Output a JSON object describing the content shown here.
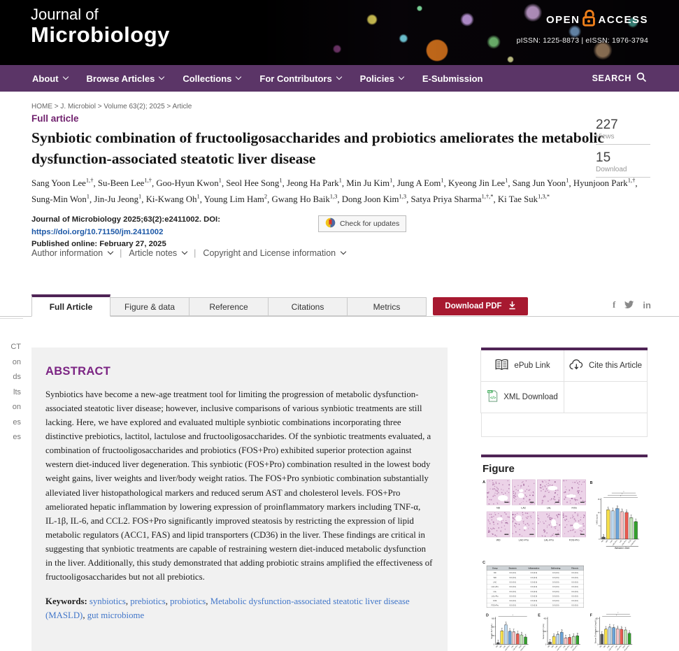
{
  "colors": {
    "brand_purple": "#5b3567",
    "accent_purple": "#4f2456",
    "article_type_purple": "#70216e",
    "abstract_heading_purple": "#7b2483",
    "pdf_red": "#a71930",
    "link_blue": "#1b57a6",
    "keyword_blue": "#4176c9",
    "open_access_orange": "#ef7f1a"
  },
  "header": {
    "journal_title_line1": "Journal of",
    "journal_title_line2": "Microbiology",
    "open_access_left": "OPEN",
    "open_access_right": "ACCESS",
    "issn_text": "pISSN: 1225-8873  |  eISSN: 1976-3794"
  },
  "nav": {
    "items": [
      {
        "label": "About",
        "dropdown": true
      },
      {
        "label": "Browse Articles",
        "dropdown": true
      },
      {
        "label": "Collections",
        "dropdown": true
      },
      {
        "label": "For Contributors",
        "dropdown": true
      },
      {
        "label": "Policies",
        "dropdown": true
      },
      {
        "label": "E-Submission",
        "dropdown": false
      }
    ],
    "search_label": "SEARCH"
  },
  "breadcrumb": "HOME > J. Microbiol > Volume 63(2); 2025 > Article",
  "article": {
    "type_label": "Full article",
    "title": "Synbiotic combination of fructooligosaccharides and probiotics ameliorates the metabolic dysfunction-associated steatotic liver disease",
    "authors": [
      {
        "name": "Sang Yoon Lee",
        "sup": "1,†"
      },
      {
        "name": "Su-Been Lee",
        "sup": "1,†"
      },
      {
        "name": "Goo-Hyun Kwon",
        "sup": "1"
      },
      {
        "name": "Seol Hee Song",
        "sup": "1"
      },
      {
        "name": "Jeong Ha Park",
        "sup": "1"
      },
      {
        "name": "Min Ju Kim",
        "sup": "1"
      },
      {
        "name": "Jung A Eom",
        "sup": "1"
      },
      {
        "name": "Kyeong Jin Lee",
        "sup": "1"
      },
      {
        "name": "Sang Jun Yoon",
        "sup": "1"
      },
      {
        "name": "Hyunjoon Park",
        "sup": "1,†"
      },
      {
        "name": "Sung-Min Won",
        "sup": "1"
      },
      {
        "name": "Jin-Ju Jeong",
        "sup": "1"
      },
      {
        "name": "Ki-Kwang Oh",
        "sup": "1"
      },
      {
        "name": "Young Lim Ham",
        "sup": "2"
      },
      {
        "name": "Gwang Ho Baik",
        "sup": "1,3"
      },
      {
        "name": "Dong Joon Kim",
        "sup": "1,3"
      },
      {
        "name": "Satya Priya Sharma",
        "sup": "1,†,*"
      },
      {
        "name": "Ki Tae Suk",
        "sup": "1,3,*"
      }
    ],
    "citation_prefix": "Journal of Microbiology 2025;63(2):e2411002. DOI: ",
    "doi_url": "https://doi.org/10.71150/jm.2411002",
    "published_line": "Published online: February 27, 2025",
    "check_updates_label": "Check for updates",
    "info_links": [
      "Author information",
      "Article notes",
      "Copyright and License information"
    ]
  },
  "metrics": {
    "views_count": "227",
    "views_label": "Views",
    "download_count": "15",
    "download_label": "Download"
  },
  "tabs": {
    "items": [
      {
        "label": "Full Article",
        "active": true
      },
      {
        "label": "Figure & data",
        "active": false
      },
      {
        "label": "Reference",
        "active": false
      },
      {
        "label": "Citations",
        "active": false
      },
      {
        "label": "Metrics",
        "active": false
      }
    ],
    "download_pdf_label": "Download PDF",
    "social": [
      "facebook",
      "twitter",
      "linkedin"
    ]
  },
  "toc_fragments": [
    "CT",
    "on",
    "ds",
    "lts",
    "on",
    "es",
    "es"
  ],
  "abstract": {
    "heading": "ABSTRACT",
    "body": "Synbiotics have become a new-age treatment tool for limiting the progression of metabolic dysfunction-associated steatotic liver disease; however, inclusive comparisons of various synbiotic treatments are still lacking. Here, we have explored and evaluated multiple synbiotic combinations incorporating three distinctive prebiotics, lactitol, lactulose and fructooligosaccharides. Of the synbiotic treatments evaluated, a combination of fructooligosaccharides and probiotics (FOS+Pro) exhibited superior protection against western diet-induced liver degeneration. This synbiotic (FOS+Pro) combination resulted in the lowest body weight gains, liver weights and liver/body weight ratios. The FOS+Pro synbiotic combination substantially alleviated liver histopathological markers and reduced serum AST and cholesterol levels. FOS+Pro ameliorated hepatic inflammation by lowering expression of proinflammatory markers including TNF-α, IL-1β, IL-6, and CCL2. FOS+Pro significantly improved steatosis by restricting the expression of lipid metabolic regulators (ACC1, FAS) and lipid transporters (CD36) in the liver. These findings are critical in suggesting that synbiotic treatments are capable of restraining western diet-induced metabolic dysfunction in the liver. Additionally, this study demonstrated that adding probiotic strains amplified the effectiveness of fructooligosaccharides but not all prebiotics.",
    "keywords_label": "Keywords:",
    "keywords": [
      "synbiotics",
      "prebiotics",
      "probiotics",
      "Metabolic dysfunction-associated steatotic liver disease (MASLD)",
      "gut microbiome"
    ]
  },
  "sidebar_tools": {
    "items": [
      {
        "label": "ePub Link",
        "icon": "epub-book-icon"
      },
      {
        "label": "Cite this Article",
        "icon": "cite-cloud-icon"
      },
      {
        "label": "XML Download",
        "icon": "xml-file-icon"
      }
    ]
  },
  "figure_section": {
    "heading": "Figure",
    "thumbnail": {
      "histology_labels": [
        [
          "ND",
          "LAC",
          "LAL",
          "FOS"
        ],
        [
          "WD",
          "LAC+Pro",
          "LAL+Pro",
          "FOS+Pro"
        ]
      ],
      "groups": [
        "ND",
        "WD",
        "LAC",
        "LAC+Pro",
        "LAL",
        "LAL+Pro",
        "FOS",
        "FOS+Pro"
      ],
      "bar_colors": [
        "#58595b",
        "#f7e04b",
        "#bcd7ee",
        "#6aa3d8",
        "#f6c2c4",
        "#e85a50",
        "#bfe3b4",
        "#33a02c"
      ],
      "xlabel": "Western Diet",
      "table": {
        "headers": [
          "Group",
          "Steatosis",
          "Inflammation",
          "Ballooning",
          "Fibrosis"
        ],
        "cell_placeholder": "0.0 (0.0)"
      },
      "panels": [
        {
          "letter": "B",
          "ylabel": "NAS score",
          "yticks": [
            "0",
            "5",
            "10",
            "15"
          ],
          "values": [
            0.05,
            0.74,
            0.71,
            0.77,
            0.69,
            0.67,
            0.54,
            0.44
          ],
          "sig_lines": 3
        },
        {
          "letter": "D",
          "ylabel": "Serum ALT (U/L)",
          "yticks": [
            "0",
            "200",
            "400",
            "600"
          ],
          "values": [
            0.06,
            0.52,
            0.75,
            0.5,
            0.48,
            0.4,
            0.36,
            0.28
          ],
          "sig_lines": 1
        },
        {
          "letter": "E",
          "ylabel": "Serum AST (U/L)",
          "yticks": [
            "0",
            "200",
            "400"
          ],
          "values": [
            0.08,
            0.3,
            0.38,
            0.46,
            0.25,
            0.27,
            0.3,
            0.33
          ],
          "sig_lines": 0
        },
        {
          "letter": "F",
          "ylabel": "Serum Cholesterol (mg/dL)",
          "yticks": [
            "0",
            "200",
            "400"
          ],
          "values": [
            0.38,
            0.58,
            0.66,
            0.64,
            0.6,
            0.58,
            0.55,
            0.42
          ],
          "sig_lines": 2
        }
      ]
    }
  }
}
